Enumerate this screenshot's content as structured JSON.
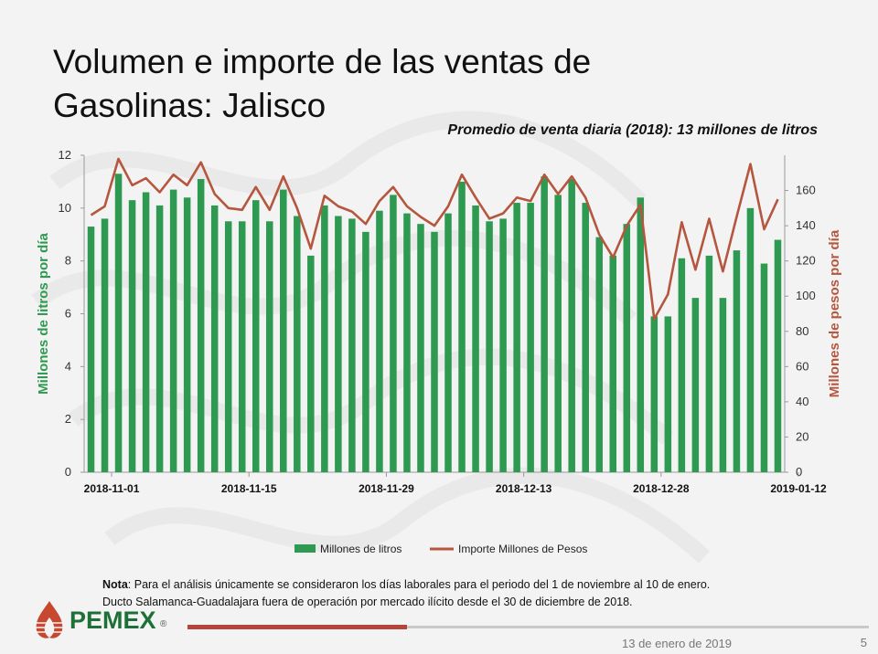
{
  "slide": {
    "title_line1": "Volumen e importe de las ventas de",
    "title_line2": "Gasolinas: Jalisco",
    "subtitle": "Promedio de venta diaria (2018): 13 millones de litros",
    "note_label": "Nota",
    "note_line1": ": Para el análisis únicamente se consideraron los días laborales para el periodo del 1 de noviembre al 10 de enero.",
    "note_line2": "Ducto Salamanca-Guadalajara  fuera de operación  por mercado ilícito desde el 30 de diciembre de 2018.",
    "logo_text": "PEMEX",
    "logo_reg": "®",
    "footer_date": "13 de enero de 2019",
    "page_number": "5"
  },
  "colors": {
    "bars": "#2e9950",
    "line": "#b5563e",
    "left_axis_label": "#2e9950",
    "right_axis_label": "#b5563e"
  },
  "chart_data": {
    "type": "bar",
    "xlabel": "",
    "ylabel": "Millones de litros por día",
    "y2label": "Millones de pesos por día",
    "ylim": [
      0,
      12
    ],
    "y2lim": [
      0,
      180
    ],
    "yticks": [
      0,
      2,
      4,
      6,
      8,
      10,
      12
    ],
    "y2ticks": [
      0,
      20,
      40,
      60,
      80,
      100,
      120,
      140,
      160
    ],
    "x_tick_labels": [
      "2018-11-01",
      "2018-11-15",
      "2018-11-29",
      "2018-12-13",
      "2018-12-28",
      "2019-01-12"
    ],
    "x_tick_indices": [
      2,
      12,
      22,
      32,
      42,
      52
    ],
    "legend_position": "bottom",
    "series": [
      {
        "name": "Millones de litros",
        "type": "bar",
        "axis": "left",
        "values": [
          9.3,
          9.6,
          11.3,
          10.3,
          10.6,
          10.1,
          10.7,
          10.4,
          11.1,
          10.1,
          9.5,
          9.5,
          10.3,
          9.5,
          10.7,
          9.7,
          8.2,
          10.1,
          9.7,
          9.6,
          9.1,
          9.9,
          10.5,
          9.8,
          9.4,
          9.1,
          9.8,
          11.0,
          10.1,
          9.5,
          9.6,
          10.2,
          10.2,
          11.2,
          10.5,
          11.1,
          10.2,
          8.9,
          8.2,
          9.4,
          10.4,
          5.9,
          5.9,
          8.1,
          6.6,
          8.2,
          6.6,
          8.4,
          10.0,
          7.9,
          8.8
        ]
      },
      {
        "name": "Importe Millones de Pesos",
        "type": "line",
        "axis": "right",
        "values": [
          146,
          151,
          178,
          163,
          167,
          159,
          169,
          163,
          176,
          158,
          150,
          149,
          162,
          149,
          168,
          150,
          127,
          157,
          151,
          148,
          141,
          154,
          162,
          151,
          145,
          140,
          151,
          169,
          156,
          144,
          147,
          156,
          154,
          169,
          158,
          168,
          156,
          135,
          122,
          140,
          152,
          87,
          101,
          142,
          115,
          144,
          114,
          145,
          175,
          138,
          155
        ]
      }
    ]
  }
}
